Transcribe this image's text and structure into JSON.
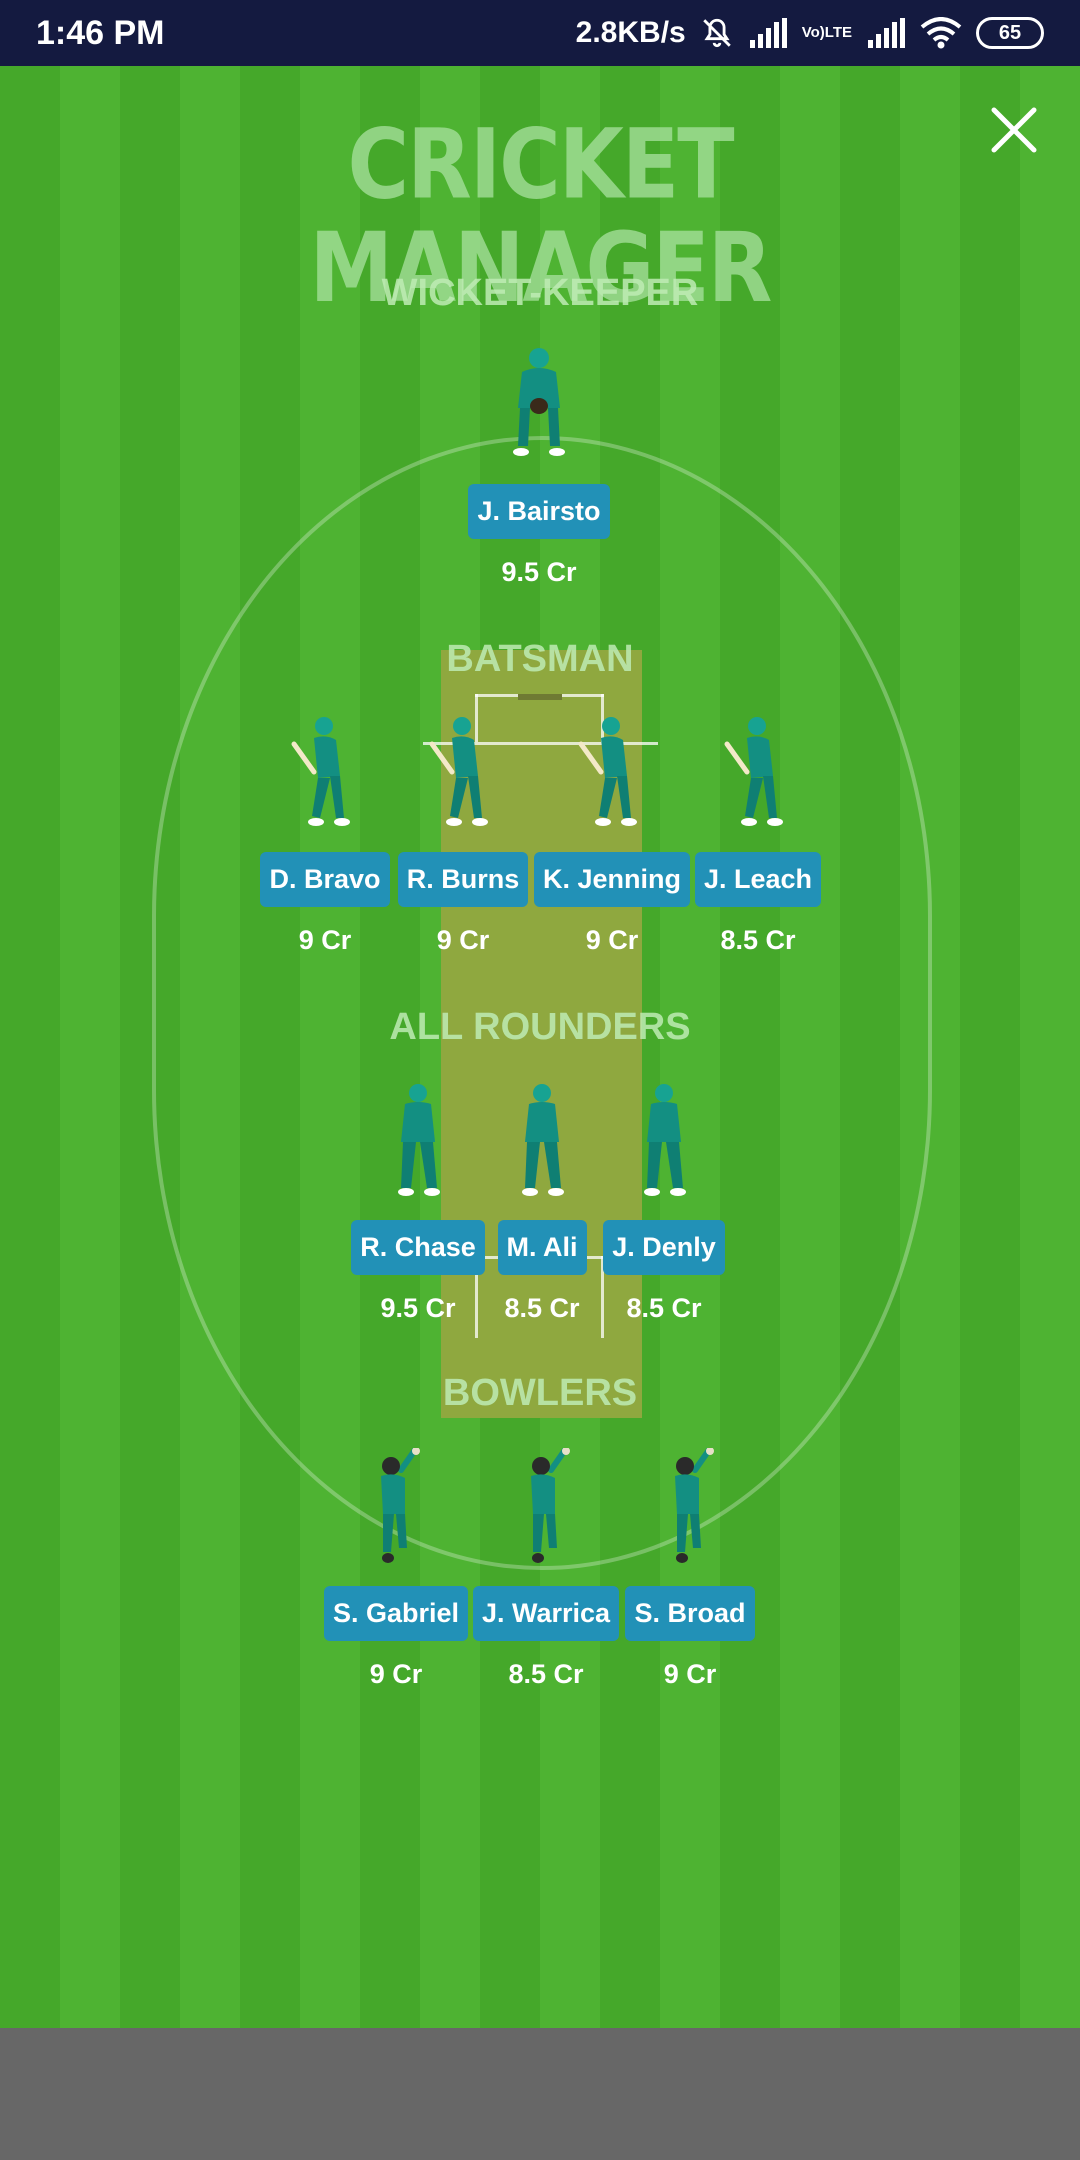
{
  "status_bar": {
    "time": "1:46 PM",
    "network_speed": "2.8KB/s",
    "volte_line1": "Vo)",
    "volte_line2": "LTE",
    "battery": "65"
  },
  "logo": {
    "line1": "CRICKET",
    "line2": "MANAGER"
  },
  "sections": {
    "wicket_keeper": "WICKET-KEEPER",
    "batsman": "BATSMAN",
    "all_rounders": "ALL ROUNDERS",
    "bowlers": "BOWLERS"
  },
  "players": {
    "wicket_keeper": [
      {
        "name": "J. Bairsto",
        "price": "9.5 Cr"
      }
    ],
    "batsmen": [
      {
        "name": "D. Bravo",
        "price": "9 Cr"
      },
      {
        "name": "R. Burns",
        "price": "9 Cr"
      },
      {
        "name": "K. Jenning",
        "price": "9 Cr"
      },
      {
        "name": "J. Leach",
        "price": "8.5 Cr"
      }
    ],
    "all_rounders": [
      {
        "name": "R. Chase",
        "price": "9.5 Cr"
      },
      {
        "name": "M. Ali",
        "price": "8.5 Cr"
      },
      {
        "name": "J. Denly",
        "price": "8.5 Cr"
      }
    ],
    "bowlers": [
      {
        "name": "S. Gabriel",
        "price": "9 Cr"
      },
      {
        "name": "J. Warrica",
        "price": "8.5 Cr"
      },
      {
        "name": "S. Broad",
        "price": "9 Cr"
      }
    ]
  },
  "colors": {
    "status_bar_bg": "#141a40",
    "field_green": "#4eb332",
    "pitch": "#8fa83f",
    "name_badge": "#2291b7",
    "jersey": "#138f82"
  }
}
